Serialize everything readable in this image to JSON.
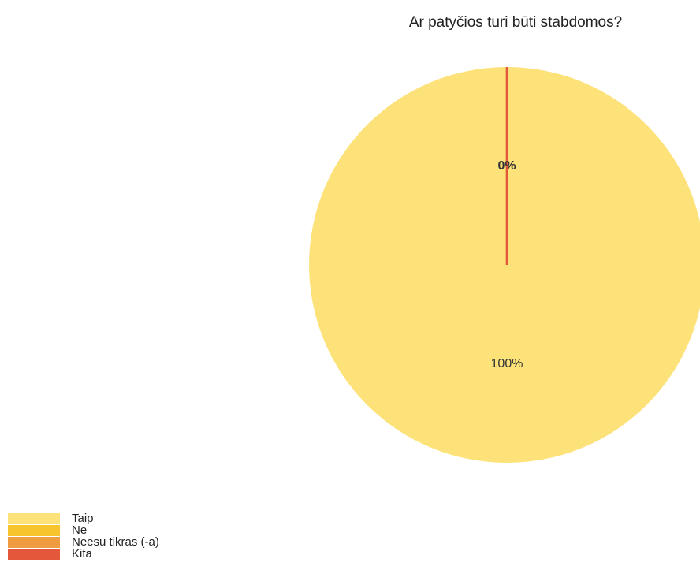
{
  "chart_data": {
    "type": "pie",
    "title": "Ar patyčios turi būti stabdomos?",
    "categories": [
      "Taip",
      "Ne",
      "Neesu tikras (-a)",
      "Kita"
    ],
    "values": [
      100,
      0,
      0,
      0
    ],
    "colors": [
      "#fde27a",
      "#f7c42d",
      "#ef9b3f",
      "#e4573b"
    ],
    "data_labels": [
      {
        "category": "Taip",
        "text": "100%"
      },
      {
        "category": "Kita",
        "text": "0%"
      }
    ],
    "legend_position": "bottom-left"
  }
}
